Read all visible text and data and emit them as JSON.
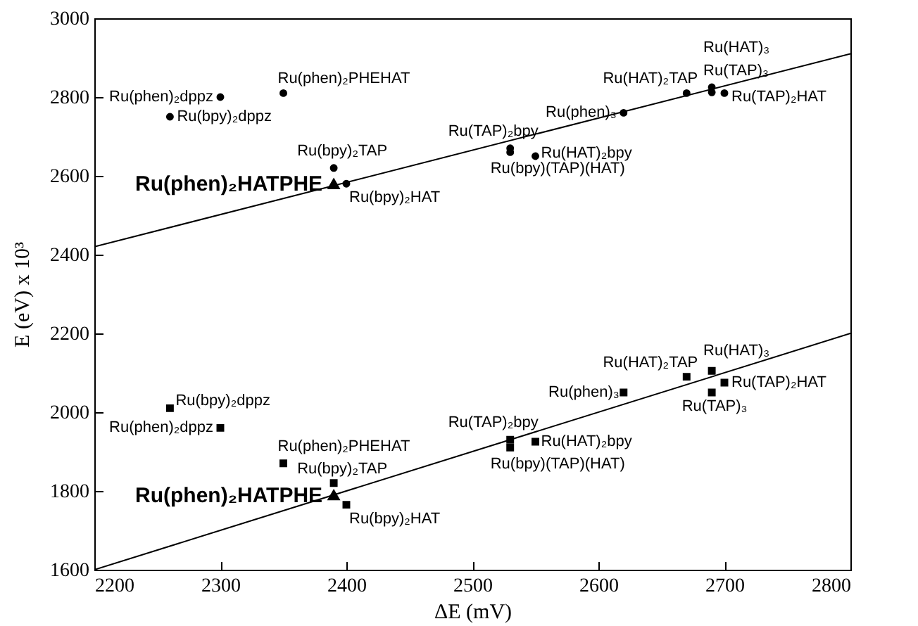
{
  "chart_data": {
    "type": "scatter",
    "xlabel": "ΔE (mV)",
    "ylabel": "E (eV) x 10³",
    "xlim": [
      2200,
      2800
    ],
    "xticks": [
      2200,
      2300,
      2400,
      2500,
      2600,
      2700,
      2800
    ],
    "ylim": [
      1600,
      3000
    ],
    "yticks": [
      1600,
      1800,
      2000,
      2200,
      2400,
      2600,
      2800,
      3000
    ],
    "grid": false,
    "series": [
      {
        "color": "#000000",
        "marker": "circle",
        "x": [
          2300,
          2260,
          2350
        ],
        "values": [
          2800,
          2750,
          2810
        ]
      },
      {
        "color": "#000000",
        "marker": "circle",
        "x": [
          2390,
          2400,
          2530,
          2530,
          2550,
          2620,
          2670,
          2690,
          2690,
          2700
        ],
        "values": [
          2620,
          2580,
          2670,
          2660,
          2650,
          2760,
          2810,
          2825,
          2812,
          2810
        ]
      },
      {
        "color": "#000000",
        "marker": "triangle",
        "x": [
          2390
        ],
        "values": [
          2580
        ]
      },
      {
        "color": "#000000",
        "marker": "square",
        "x": [
          2260,
          2300,
          2350
        ],
        "values": [
          2010,
          1960,
          1870
        ]
      },
      {
        "color": "#000000",
        "marker": "square",
        "x": [
          2390,
          2400,
          2530,
          2530,
          2550,
          2620,
          2670,
          2690,
          2690,
          2700
        ],
        "values": [
          1820,
          1765,
          1930,
          1910,
          1925,
          2050,
          2090,
          2105,
          2050,
          2075
        ]
      },
      {
        "color": "#000000",
        "marker": "triangle",
        "x": [
          2390
        ],
        "values": [
          1790
        ]
      },
      {
        "type": "line",
        "color": "#000000",
        "marker": "none",
        "x": [
          2200,
          2800
        ],
        "values": [
          2420,
          2910
        ]
      },
      {
        "type": "line",
        "color": "#000000",
        "marker": "none",
        "x": [
          2200,
          2800
        ],
        "values": [
          1600,
          2200
        ]
      }
    ],
    "annotations": [
      {
        "text": "Ru(phen)₂dppz",
        "x": 2300,
        "y": 2800
      },
      {
        "text": "Ru(bpy)₂dppz",
        "x": 2260,
        "y": 2750
      },
      {
        "text": "Ru(phen)₂PHEHAT",
        "x": 2350,
        "y": 2810
      },
      {
        "text": "Ru(bpy)₂TAP",
        "x": 2390,
        "y": 2620
      },
      {
        "text": "Ru(phen)₂HATPHE",
        "x": 2390,
        "y": 2580
      },
      {
        "text": "Ru(bpy)₂HAT",
        "x": 2400,
        "y": 2580
      },
      {
        "text": "Ru(TAP)₂bpy",
        "x": 2530,
        "y": 2670
      },
      {
        "text": "Ru(bpy)(TAP)(HAT)",
        "x": 2530,
        "y": 2660
      },
      {
        "text": "Ru(HAT)₂bpy",
        "x": 2550,
        "y": 2650
      },
      {
        "text": "Ru(phen)₃",
        "x": 2620,
        "y": 2760
      },
      {
        "text": "Ru(HAT)₂TAP",
        "x": 2670,
        "y": 2810
      },
      {
        "text": "Ru(HAT)₃",
        "x": 2690,
        "y": 2825
      },
      {
        "text": "Ru(TAP)₃",
        "x": 2690,
        "y": 2812
      },
      {
        "text": "Ru(TAP)₂HAT",
        "x": 2700,
        "y": 2810
      },
      {
        "text": "Ru(bpy)₂dppz",
        "x": 2260,
        "y": 2010
      },
      {
        "text": "Ru(phen)₂dppz",
        "x": 2300,
        "y": 1960
      },
      {
        "text": "Ru(phen)₂PHEHAT",
        "x": 2350,
        "y": 1870
      },
      {
        "text": "Ru(bpy)₂TAP",
        "x": 2390,
        "y": 1820
      },
      {
        "text": "Ru(phen)₂HATPHE",
        "x": 2390,
        "y": 1790
      },
      {
        "text": "Ru(bpy)₂HAT",
        "x": 2400,
        "y": 1765
      },
      {
        "text": "Ru(TAP)₂bpy",
        "x": 2530,
        "y": 1930
      },
      {
        "text": "Ru(bpy)(TAP)(HAT)",
        "x": 2530,
        "y": 1910
      },
      {
        "text": "Ru(HAT)₂bpy",
        "x": 2550,
        "y": 1925
      },
      {
        "text": "Ru(phen)₃",
        "x": 2620,
        "y": 2050
      },
      {
        "text": "Ru(HAT)₂TAP",
        "x": 2670,
        "y": 2090
      },
      {
        "text": "Ru(HAT)₃",
        "x": 2690,
        "y": 2105
      },
      {
        "text": "Ru(TAP)₃",
        "x": 2690,
        "y": 2050
      },
      {
        "text": "Ru(TAP)₂HAT",
        "x": 2700,
        "y": 2075
      }
    ]
  }
}
